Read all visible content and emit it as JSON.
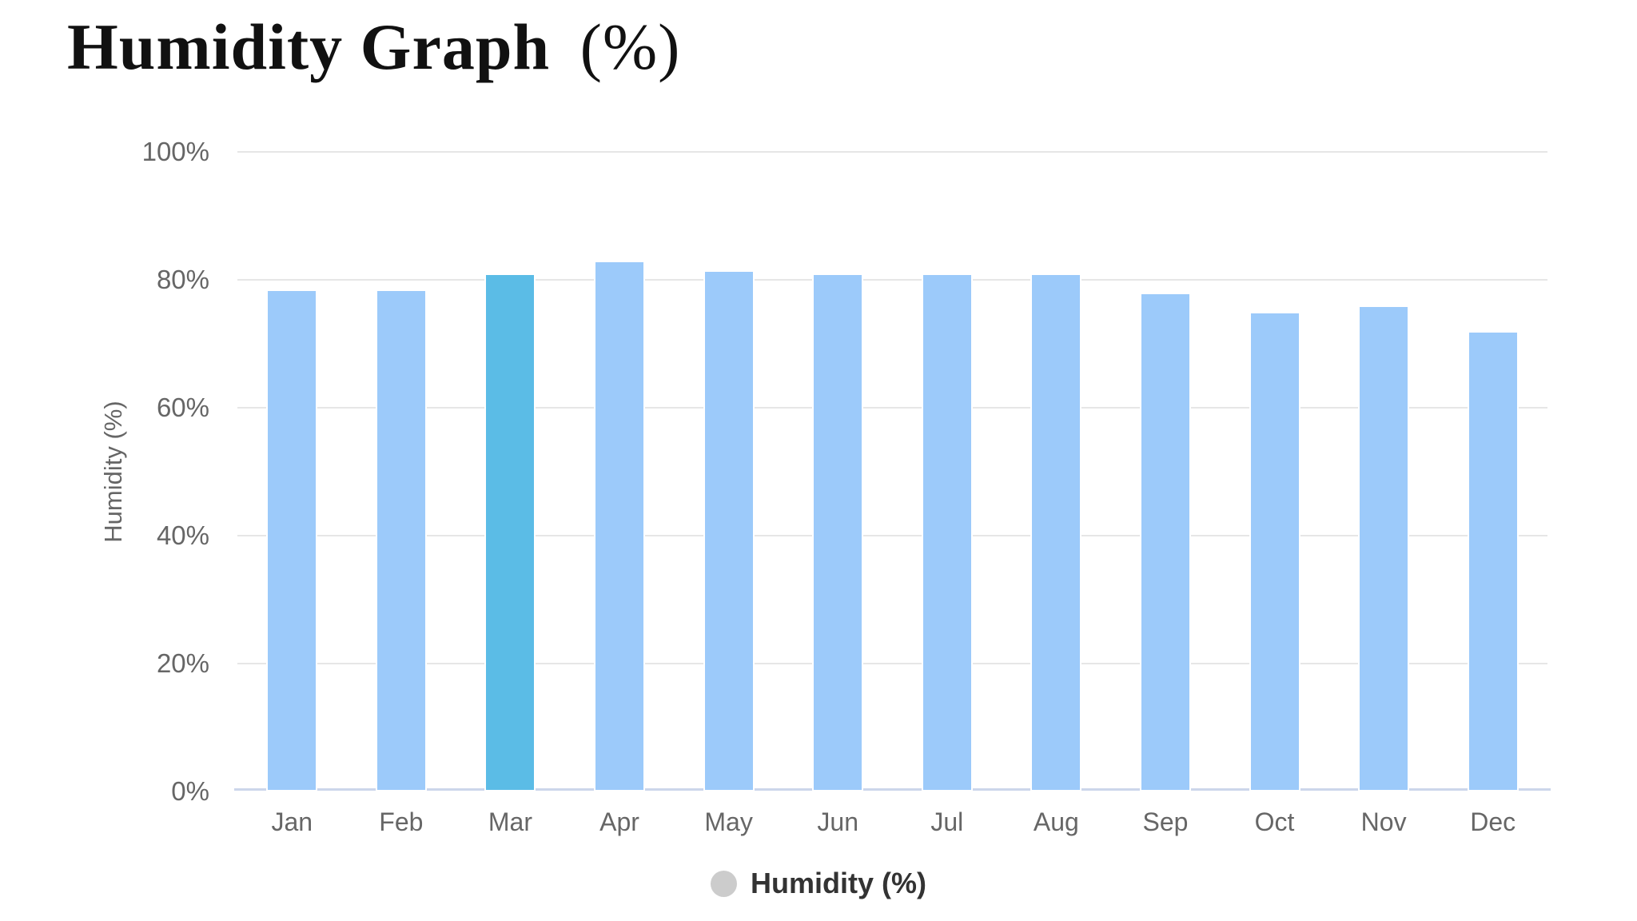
{
  "header": {
    "title_main": "Humidity Graph",
    "title_units": "(%)"
  },
  "legend": {
    "label": "Humidity (%)",
    "marker_color": "#cccccc"
  },
  "colors": {
    "bar": "#9ccafa",
    "bar_highlight": "#5bbce6",
    "gridline": "#e6e6e6",
    "axis_line": "#ccd6eb",
    "tick_label": "#666666",
    "legend_text": "#333333",
    "title": "#111111"
  },
  "chart_data": {
    "type": "bar",
    "title": "Humidity Graph (%)",
    "categories": [
      "Jan",
      "Feb",
      "Mar",
      "Apr",
      "May",
      "Jun",
      "Jul",
      "Aug",
      "Sep",
      "Oct",
      "Nov",
      "Dec"
    ],
    "series": [
      {
        "name": "Humidity (%)",
        "values": [
          78.5,
          78.5,
          81,
          83,
          81.5,
          81,
          81,
          81,
          78,
          75,
          76,
          72
        ]
      }
    ],
    "highlighted_category": "Mar",
    "xlabel": "",
    "ylabel": "Humidity (%)",
    "ylim": [
      0,
      100
    ],
    "yticks": [
      {
        "value": 0,
        "label": "0%"
      },
      {
        "value": 20,
        "label": "20%"
      },
      {
        "value": 40,
        "label": "40%"
      },
      {
        "value": 60,
        "label": "60%"
      },
      {
        "value": 80,
        "label": "80%"
      },
      {
        "value": 100,
        "label": "100%"
      }
    ],
    "grid": true,
    "legend_position": "bottom-center"
  }
}
